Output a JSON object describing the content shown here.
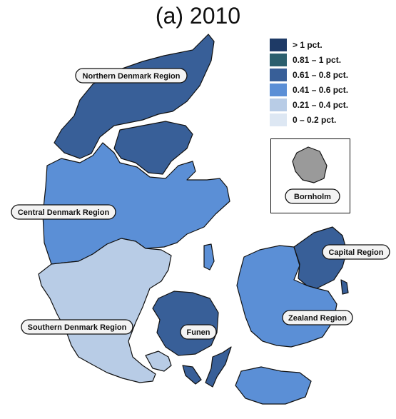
{
  "title": "(a) 2010",
  "legend": {
    "items": [
      {
        "label": "> 1 pct.",
        "color": "#1e3a66"
      },
      {
        "label": "0.81 – 1 pct.",
        "color": "#2b5f6e"
      },
      {
        "label": "0.61 – 0.8 pct.",
        "color": "#385f98"
      },
      {
        "label": "0.41 – 0.6 pct.",
        "color": "#5b8fd6"
      },
      {
        "label": "0.21 – 0.4 pct.",
        "color": "#b8cce6"
      },
      {
        "label": "0 – 0.2 pct.",
        "color": "#dde7f3"
      }
    ]
  },
  "regions": [
    {
      "id": "northern",
      "label": "Northern Denmark Region",
      "color": "#385f98"
    },
    {
      "id": "central",
      "label": "Central Denmark Region",
      "color": "#5b8fd6"
    },
    {
      "id": "southern",
      "label": "Southern Denmark Region",
      "color": "#b8cce6"
    },
    {
      "id": "funen",
      "label": "Funen",
      "color": "#385f98"
    },
    {
      "id": "zealand",
      "label": "Zealand Region",
      "color": "#5b8fd6"
    },
    {
      "id": "capital",
      "label": "Capital Region",
      "color": "#385f98"
    },
    {
      "id": "bornholm",
      "label": "Bornholm",
      "color": "#9a9a9a"
    }
  ]
}
